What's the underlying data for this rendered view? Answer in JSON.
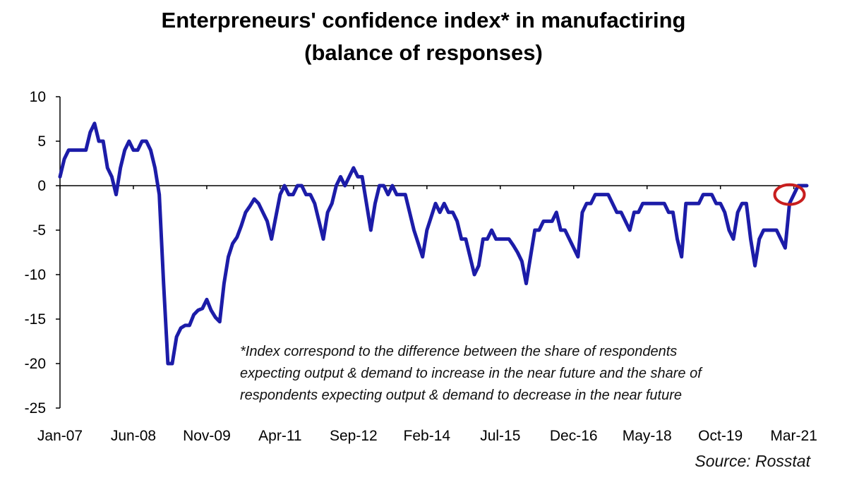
{
  "chart_data": {
    "type": "line",
    "title": "Enterpreneurs' confidence index* in manufactiring",
    "subtitle": "(balance of responses)",
    "xlabel": "",
    "ylabel": "",
    "ylim": [
      -25,
      10
    ],
    "yticks": [
      10,
      5,
      0,
      -5,
      -10,
      -15,
      -20,
      -25
    ],
    "xticks": [
      "Jan-07",
      "Jun-08",
      "Nov-09",
      "Apr-11",
      "Sep-12",
      "Feb-14",
      "Jul-15",
      "Dec-16",
      "May-18",
      "Oct-19",
      "Mar-21"
    ],
    "grid": false,
    "line_color": "#1c1ca8",
    "highlight_color": "#c81e1e",
    "highlight_index": 170,
    "series": [
      {
        "values": [
          1,
          3,
          4,
          4,
          4,
          4,
          4,
          6,
          7,
          5,
          5,
          2,
          1,
          -1,
          2,
          4,
          5,
          4,
          4,
          5,
          5,
          4,
          2,
          -1,
          -11,
          -20,
          -20,
          -17,
          -16,
          -15.7,
          -15.7,
          -14.5,
          -14,
          -13.8,
          -12.8,
          -14,
          -14.8,
          -15.3,
          -11,
          -8,
          -6.5,
          -5.8,
          -4.5,
          -3,
          -2.3,
          -1.5,
          -2,
          -3,
          -4,
          -6,
          -3.5,
          -1,
          0,
          -1,
          -1,
          0,
          0,
          -1,
          -1,
          -2,
          -4,
          -6,
          -3,
          -2,
          0,
          1,
          0,
          1,
          2,
          1,
          1,
          -2,
          -5,
          -2,
          0,
          0,
          -1,
          0,
          -1,
          -1,
          -1,
          -3,
          -5,
          -6.5,
          -8,
          -5,
          -3.5,
          -2,
          -3,
          -2,
          -3,
          -3,
          -4,
          -6,
          -6,
          -8,
          -10,
          -9,
          -6,
          -6,
          -5,
          -6,
          -6,
          -6,
          -6,
          -6.7,
          -7.5,
          -8.5,
          -11,
          -8,
          -5,
          -5,
          -4,
          -4,
          -4,
          -3,
          -5,
          -5,
          -6,
          -7,
          -8,
          -3,
          -2,
          -2,
          -1,
          -1,
          -1,
          -1,
          -2,
          -3,
          -3,
          -4,
          -5,
          -3,
          -3,
          -2,
          -2,
          -2,
          -2,
          -2,
          -2,
          -3,
          -3,
          -6,
          -8,
          -2,
          -2,
          -2,
          -2,
          -1,
          -1,
          -1,
          -2,
          -2,
          -3,
          -5,
          -6,
          -3,
          -2,
          -2,
          -6,
          -9,
          -6,
          -5,
          -5,
          -5,
          -5,
          -6,
          -7,
          -2,
          -1,
          0,
          0,
          0
        ]
      }
    ],
    "note_lines": [
      "*Index correspond to the difference between the share of respondents",
      "expecting output & demand to increase in the near future and the share of",
      "respondents expecting output & demand to decrease in the near future"
    ],
    "source": "Source: Rosstat"
  }
}
